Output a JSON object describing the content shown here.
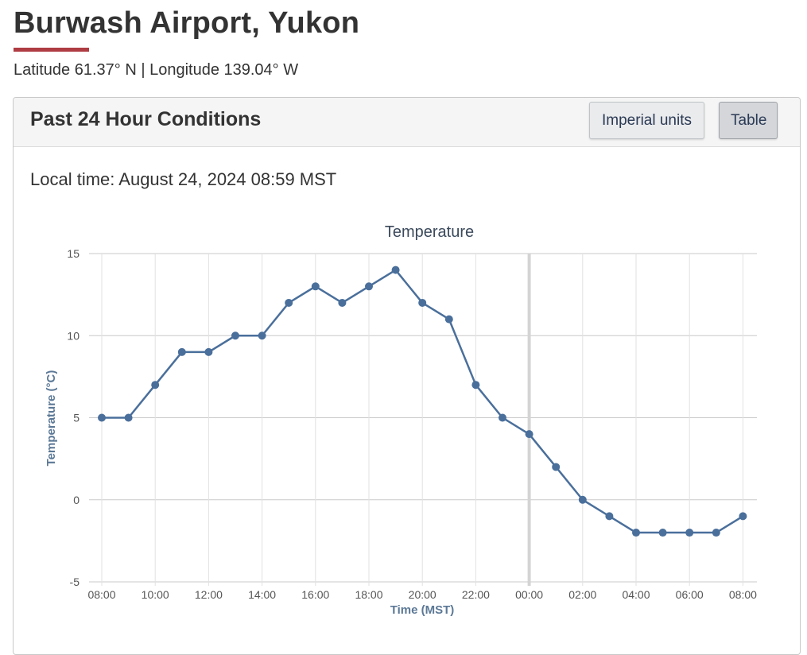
{
  "header": {
    "title": "Burwash Airport, Yukon",
    "coordinates": "Latitude 61.37° N | Longitude 139.04° W",
    "accent_color": "#af3c43"
  },
  "panel": {
    "title": "Past 24 Hour Conditions",
    "units_button": "Imperial units",
    "table_button": "Table",
    "local_time": "Local time: August 24, 2024 08:59 MST"
  },
  "chart_data": {
    "type": "line",
    "title": "Temperature",
    "xlabel": "Time (MST)",
    "ylabel": "Temperature (°C)",
    "ylim": [
      -5,
      15
    ],
    "yticks": [
      -5,
      0,
      5,
      10,
      15
    ],
    "grid": true,
    "x_tick_labels": [
      "08:00",
      "10:00",
      "12:00",
      "14:00",
      "16:00",
      "18:00",
      "20:00",
      "22:00",
      "00:00",
      "02:00",
      "04:00",
      "06:00",
      "08:00"
    ],
    "day_boundary_label": "00:00",
    "series_color": "#4a6f9b",
    "series": [
      {
        "x": [
          "08:00",
          "09:00",
          "10:00",
          "11:00",
          "12:00",
          "13:00",
          "14:00",
          "15:00",
          "16:00",
          "17:00",
          "18:00",
          "19:00",
          "20:00",
          "21:00",
          "22:00",
          "23:00",
          "00:00",
          "01:00",
          "02:00",
          "03:00",
          "04:00",
          "05:00",
          "06:00",
          "07:00",
          "08:00"
        ],
        "values": [
          5,
          5,
          7,
          9,
          9,
          10,
          10,
          12,
          13,
          12,
          13,
          14,
          12,
          11,
          7,
          5,
          4,
          2,
          0,
          -1,
          -2,
          -2,
          -2,
          -2,
          -1
        ]
      }
    ]
  }
}
